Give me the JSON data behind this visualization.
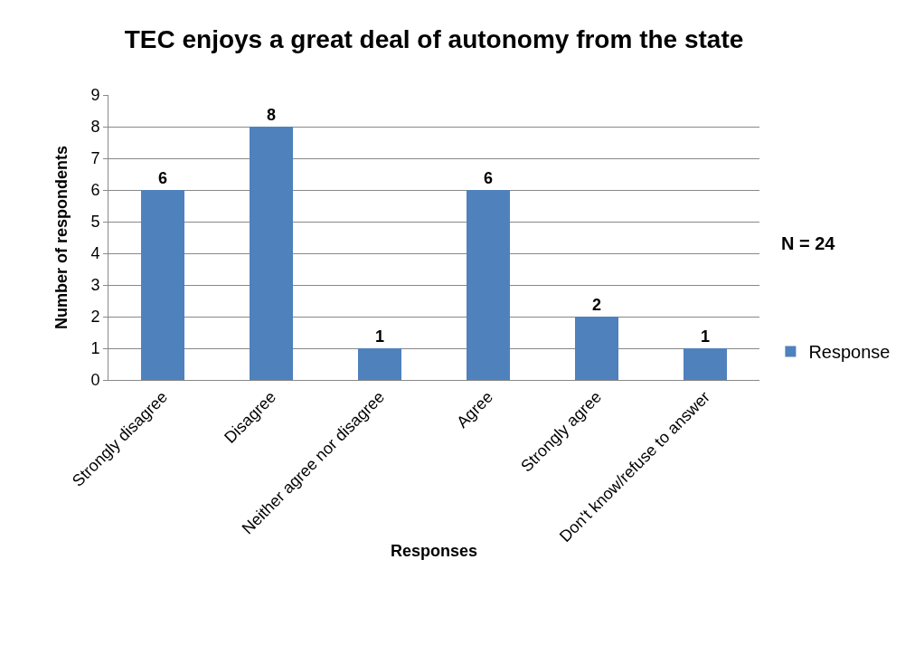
{
  "chart_data": {
    "type": "bar",
    "title": "TEC enjoys a great deal of autonomy from the state",
    "xlabel": "Responses",
    "ylabel": "Number of respondents",
    "categories": [
      "Strongly disagree",
      "Disagree",
      "Neither agree nor disagree",
      "Agree",
      "Strongly agree",
      "Don't know/refuse to answer"
    ],
    "series": [
      {
        "name": "Response",
        "color": "#4f81bd",
        "values": [
          6,
          8,
          1,
          6,
          2,
          1
        ]
      }
    ],
    "ylim": [
      0,
      9
    ],
    "yticks": [
      0,
      1,
      2,
      3,
      4,
      5,
      6,
      7,
      8,
      9
    ],
    "grid": "y",
    "legend": "right",
    "data_labels": true,
    "annotations": [
      "N = 24"
    ]
  }
}
